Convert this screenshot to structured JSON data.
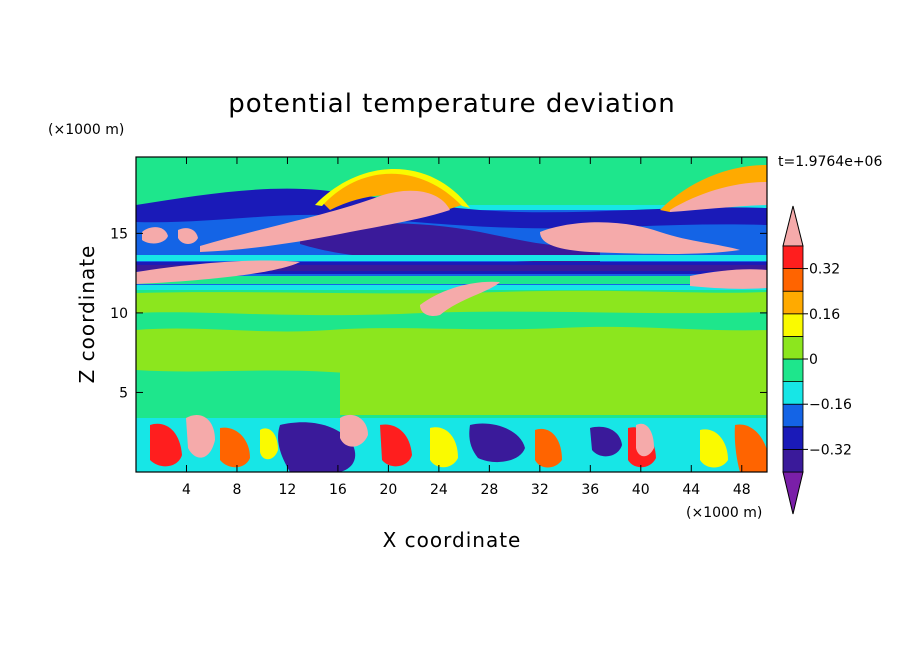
{
  "chart_data": {
    "type": "heatmap",
    "title": "potential temperature deviation",
    "xlabel": "X coordinate",
    "ylabel": "Z coordinate",
    "x_unit": "(×1000 m)",
    "y_unit": "(×1000 m)",
    "time_label": "t=1.9764e+06",
    "xlim": [
      0,
      50
    ],
    "ylim": [
      0,
      19.8
    ],
    "x_ticks": [
      4,
      8,
      12,
      16,
      20,
      24,
      28,
      32,
      36,
      40,
      44,
      48
    ],
    "y_ticks": [
      5,
      10,
      15
    ],
    "colorbar": {
      "levels": [
        -0.4,
        -0.32,
        -0.24,
        -0.16,
        -0.08,
        0,
        0.08,
        0.16,
        0.24,
        0.32,
        0.4
      ],
      "tick_labels": [
        "0.32",
        "0.16",
        "0",
        "−0.16",
        "−0.32"
      ],
      "tick_values": [
        0.32,
        0.16,
        0,
        -0.16,
        -0.32
      ],
      "colors": [
        "#7a1fa8",
        "#3a1a9a",
        "#1a1ab8",
        "#1464e6",
        "#17e6e6",
        "#1ee68c",
        "#8ce61e",
        "#fafa00",
        "#ffaa00",
        "#ff6400",
        "#ff1e1e",
        "#f5aaaa"
      ]
    }
  },
  "colors": {
    "background_field": "#1ee68c",
    "frame": "#000000"
  }
}
